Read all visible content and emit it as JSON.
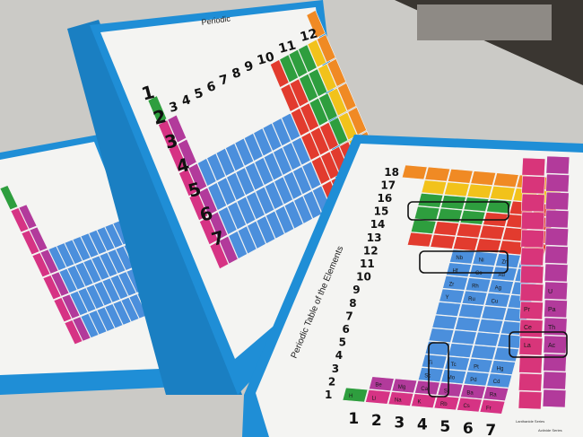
{
  "title": "Periodic Table of the Elements",
  "back_title": "Periodic",
  "period_numbers": [
    "1",
    "2",
    "3",
    "4",
    "5",
    "6",
    "7"
  ],
  "group_numbers": [
    "1",
    "2",
    "3",
    "4",
    "5",
    "6",
    "7",
    "8",
    "9",
    "10",
    "11",
    "12",
    "13",
    "14",
    "15",
    "16",
    "17",
    "18"
  ],
  "series_labels": [
    "Lanthanide Series",
    "Actinide Series"
  ],
  "element_symbols": {
    "s_block": [
      "H",
      "Li",
      "Be",
      "Na",
      "Mg",
      "K",
      "Ca",
      "Rb",
      "Sr",
      "Cs",
      "Ba",
      "Fr",
      "Ra"
    ],
    "d_block": [
      "Sc",
      "Ti",
      "Y",
      "Zr",
      "Hf",
      "Nb",
      "Mo",
      "Tc",
      "Ru",
      "Rh",
      "Co",
      "Ni",
      "Pd",
      "Pt",
      "Cu",
      "Ag",
      "Au",
      "Zn",
      "Cd",
      "Hg"
    ],
    "f_block": [
      "La",
      "Ce",
      "Pr",
      "Ac",
      "Th",
      "Pa",
      "U"
    ]
  },
  "colors": {
    "board_blue": "#1f8ed6",
    "paper": "#f4f4f2",
    "table_surface": "#c9c8c4",
    "s_block": "#b23a9b",
    "alkali": "#d63384",
    "d_block": "#4b8fdc",
    "p_green": "#2e9e3e",
    "p_orange": "#f08a24",
    "p_yellow": "#f2c21b",
    "p_red": "#e23b2e",
    "f_block": "#d8357a",
    "marker_outline": "#111111"
  }
}
